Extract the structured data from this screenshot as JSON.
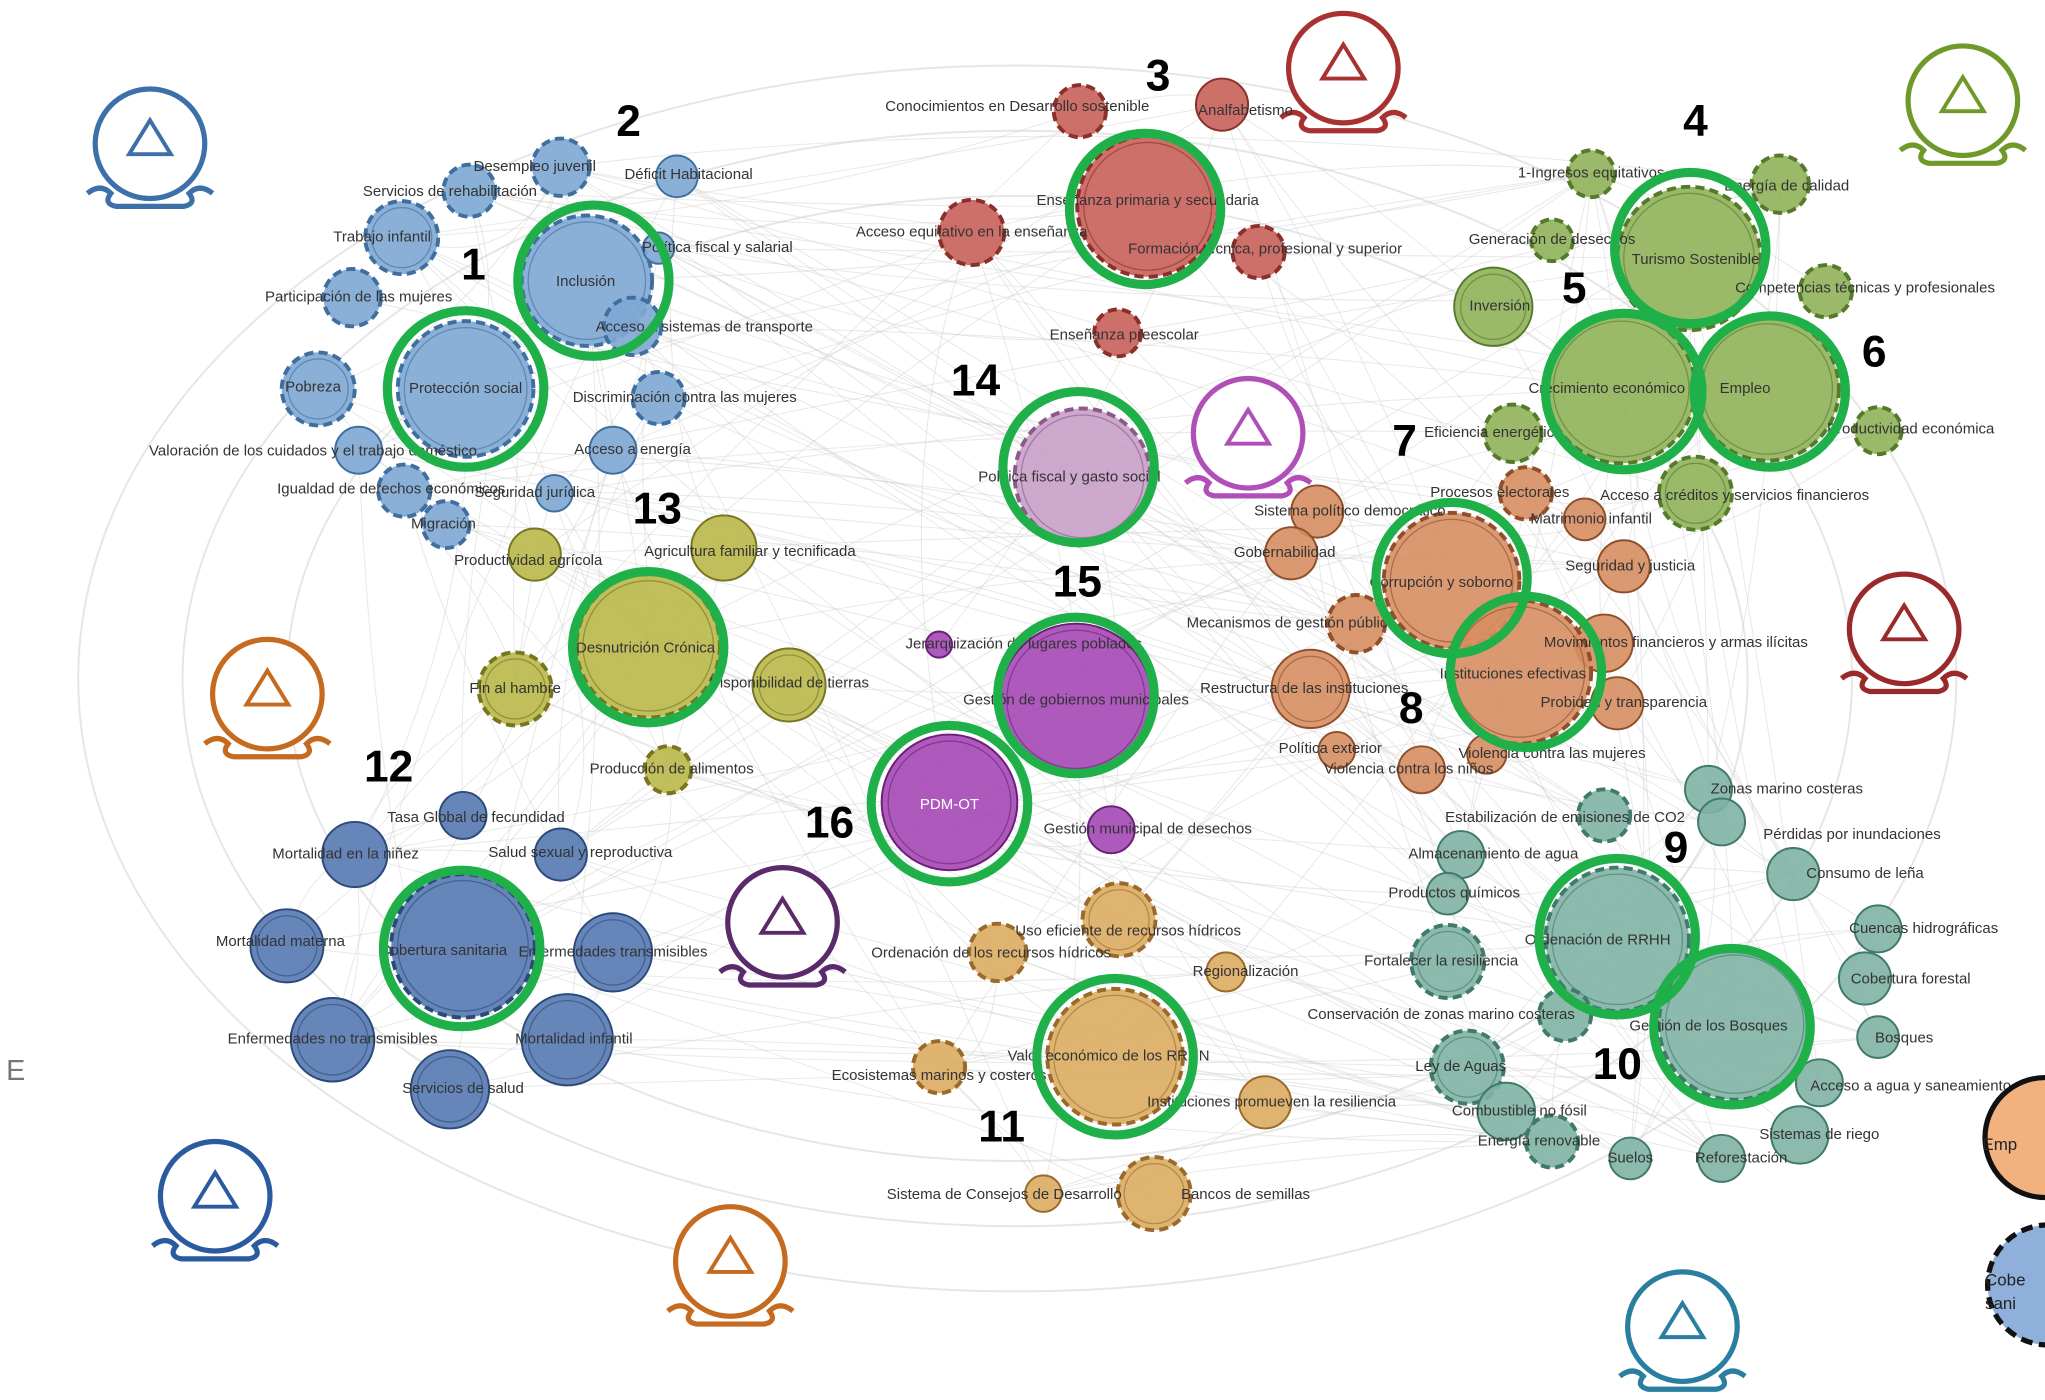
{
  "groups": [
    {
      "color": "#7ea7d4",
      "stroke": "#3f6f9f",
      "nodes": [
        "Desempleo juvenil",
        "Déficit Habitacional",
        "Servicios de rehabilitación",
        "Trabajo infantil",
        "Inclusión",
        "Política fiscal y salarial",
        "Participación de las mujeres",
        "Acceso a sistemas de transporte",
        "Pobreza",
        "Protección social",
        "Discriminación contra las mujeres",
        "Valoración de los cuidados y el trabajo doméstico",
        "Acceso a energía",
        "Igualdad de derechos económicos",
        "Seguridad jurídica",
        "Migración"
      ]
    },
    {
      "color": "#c9605a",
      "stroke": "#8a2f2a",
      "nodes": [
        "Conocimientos en Desarrollo sostenible",
        "Analfabetismo",
        "Enseñanza primaria y secundaria",
        "Acceso equitativo en la enseñanza",
        "Formación técnica, profesional y superior",
        "Enseñanza preescolar"
      ]
    },
    {
      "color": "#8fb25a",
      "stroke": "#557a2a",
      "nodes": [
        "1-Ingresos equitativos",
        "Energía de calidad",
        "Generación de desechos",
        "Turismo Sostenible",
        "Inversión",
        "Competencias técnicas y profesionales",
        "Crecimiento económico",
        "Empleo",
        "Eficiencia energética",
        "Productividad económica",
        "Acceso a créditos y servicios financieros"
      ]
    },
    {
      "color": "#d68e62",
      "stroke": "#8f4f2a",
      "nodes": [
        "Procesos electorales",
        "Sistema político democrático",
        "Matrimonio infantil",
        "Gobernabilidad",
        "Corrupción y soborno",
        "Seguridad y justicia",
        "Mecanismos de gestión pública",
        "Movimientos financieros y armas ilícitas",
        "Instituciones efectivas",
        "Restructura de las instituciones",
        "Probidad y transparencia",
        "Política exterior",
        "Violencia contra los niños",
        "Violencia contra las mujeres"
      ]
    },
    {
      "color": "#7fb3a4",
      "stroke": "#3f7a6a",
      "nodes": [
        "Zonas marino costeras",
        "Estabilización de emisiones de CO2",
        "Pérdidas por inundaciones",
        "Almacenamiento de agua",
        "Consumo de leña",
        "Productos químicos",
        "Ordenación de RRHH",
        "Cuencas hidrográficas",
        "Fortalecer la resiliencia",
        "Cobertura forestal",
        "Conservación de zonas marino costeras",
        "Gestión de los Bosques",
        "Bosques",
        "Ley de Aguas",
        "Acceso a agua y saneamiento",
        "Combustible no fósil",
        "Sistemas de riego",
        "Energía renovable",
        "Suelos",
        "Reforestación"
      ]
    },
    {
      "color": "#dcac62",
      "stroke": "#9a6a2a",
      "nodes": [
        "Uso eficiente de recursos hídricos",
        "Ordenación de los recursos hídricos",
        "Regionalización",
        "Valor económico de los RRNN",
        "Ecosistemas marinos y costeros",
        "Instituciones promueven la resiliencia",
        "Sistema de Consejos de Desarrollo",
        "Bancos de semillas"
      ]
    },
    {
      "color": "#5579b3",
      "stroke": "#2b4a7a",
      "nodes": [
        "Tasa Global de fecundidad",
        "Mortalidad en la niñez",
        "Salud sexual y reproductiva",
        "Mortalidad materna",
        "Cobertura sanitaria",
        "Enfermedades transmisibles",
        "Enfermedades no transmisibles",
        "Mortalidad infantil",
        "Servicios de salud"
      ]
    },
    {
      "color": "#b9b84a",
      "stroke": "#777520",
      "nodes": [
        "Productividad agrícola",
        "Agricultura familiar y tecnificada",
        "Desnutrición Crónica",
        "Fin al hambre",
        "Disponibilidad de tierras",
        "Producción de alimentos"
      ]
    },
    {
      "color": "#c9a0c9",
      "stroke": "#8a5a8a",
      "nodes": [
        "Política fiscal y gasto social"
      ]
    },
    {
      "color": "#a548b5",
      "stroke": "#6a1f78",
      "nodes": [
        "Gestión de gobiernos municipales",
        "Jerarquización de lugares poblados",
        "PDM-OT",
        "Gestión municipal de desechos"
      ]
    }
  ],
  "highlight_color": "#1fb04a",
  "highlights": [
    "1",
    "2",
    "3",
    "4",
    "5",
    "6",
    "7",
    "8",
    "9",
    "10",
    "11",
    "12",
    "13",
    "14",
    "15",
    "16"
  ],
  "side_text": "E",
  "legend": [
    {
      "color": "#f2b27f",
      "lines": [
        "Emp"
      ]
    },
    {
      "color": "#8fb0db",
      "lines": [
        "Cobe",
        "sani"
      ]
    }
  ]
}
